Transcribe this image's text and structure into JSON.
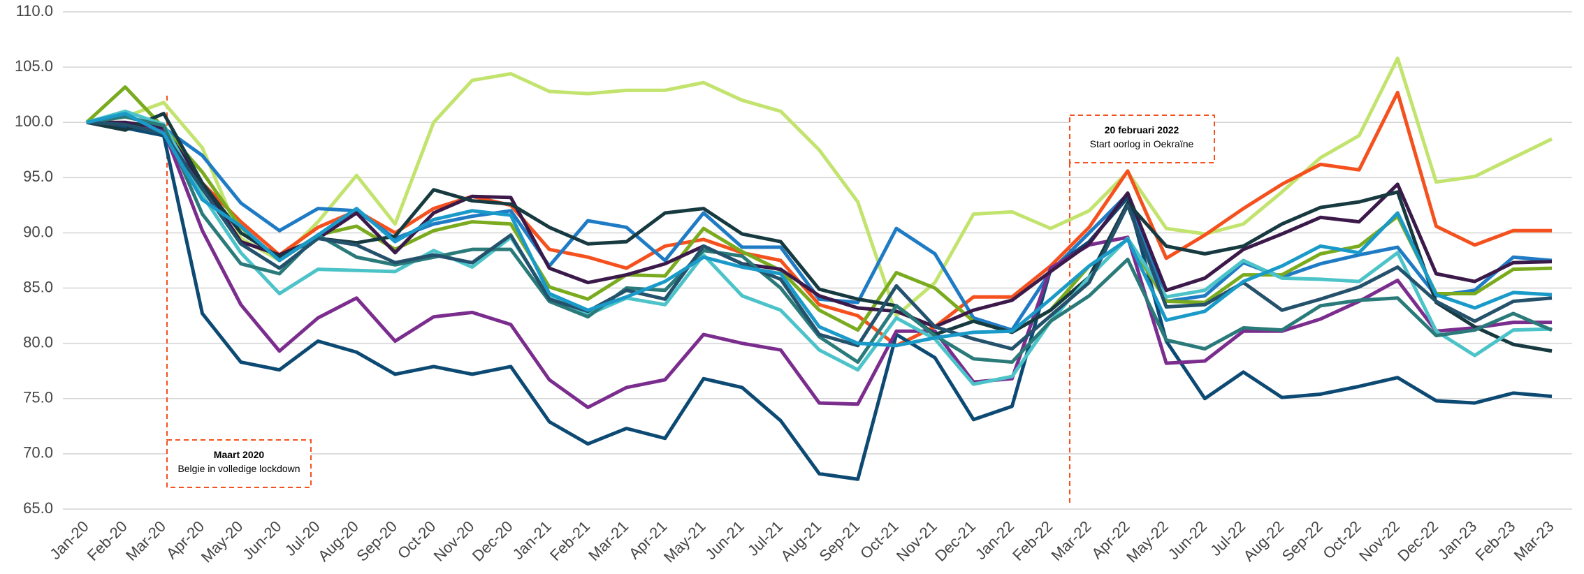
{
  "chart_data": {
    "type": "line",
    "categories": [
      "Jan-20",
      "Feb-20",
      "Mar-20",
      "Apr-20",
      "May-20",
      "Jun-20",
      "Jul-20",
      "Aug-20",
      "Sep-20",
      "Oct-20",
      "Nov-20",
      "Dec-20",
      "Jan-21",
      "Feb-21",
      "Mar-21",
      "Apr-21",
      "May-21",
      "Jun-21",
      "Jul-21",
      "Aug-21",
      "Sep-21",
      "Oct-21",
      "Nov-21",
      "Dec-21",
      "Jan-22",
      "Feb-22",
      "Mar-22",
      "Apr-22",
      "May-22",
      "Jun-22",
      "Jul-22",
      "Aug-22",
      "Sep-22",
      "Oct-22",
      "Nov-22",
      "Dec-22",
      "Jan-23",
      "Feb-23",
      "Mar-23"
    ],
    "ylim": [
      65,
      110
    ],
    "yticks": [
      {
        "value": 65,
        "label": "65.0"
      },
      {
        "value": 70,
        "label": "70.0"
      },
      {
        "value": 75,
        "label": "75.0"
      },
      {
        "value": 80,
        "label": "80.0"
      },
      {
        "value": 85,
        "label": "85.0"
      },
      {
        "value": 90,
        "label": "90.0"
      },
      {
        "value": 95,
        "label": "95.0"
      },
      {
        "value": 100,
        "label": "100.0"
      },
      {
        "value": 105,
        "label": "105.0"
      },
      {
        "value": 110,
        "label": "110.0"
      }
    ],
    "grid": true,
    "annotations": [
      {
        "title": "Maart 2020",
        "text": "Belgie in volledige lockdown"
      },
      {
        "title": "20 februari 2022",
        "text": "Start oorlog in Oekraïne"
      }
    ],
    "series": [
      {
        "color": "#c2e46e",
        "values": [
          100,
          100.5,
          101.8,
          97.7,
          89.5,
          87.5,
          91,
          95.2,
          90.8,
          100,
          103.8,
          104.4,
          102.8,
          102.6,
          102.9,
          102.9,
          103.6,
          102,
          101,
          97.5,
          92.8,
          82.5,
          85.5,
          91.7,
          91.9,
          90.4,
          92,
          95.5,
          90.4,
          89.9,
          90.8,
          93.7,
          96.8,
          98.8,
          105.8,
          94.6,
          95.1,
          96.8,
          98.5
        ]
      },
      {
        "color": "#f4511e",
        "values": [
          100,
          99.8,
          99.2,
          94.5,
          91,
          88,
          90.5,
          92,
          90,
          92.2,
          93.3,
          92.5,
          88.5,
          87.8,
          86.8,
          88.8,
          89.4,
          88.2,
          87.5,
          83.5,
          82.5,
          79.8,
          81.5,
          84.2,
          84.2,
          87,
          90.5,
          95.6,
          87.7,
          89.8,
          92.2,
          94.4,
          96.2,
          95.7,
          102.7,
          90.6,
          88.9,
          90.2,
          90.2
        ]
      },
      {
        "color": "#1f7bc4",
        "values": [
          100,
          99.5,
          99.5,
          97,
          92.7,
          90.2,
          92.2,
          92,
          89.5,
          90.8,
          91.5,
          92,
          87,
          91.1,
          90.5,
          87.5,
          91.8,
          88.7,
          88.7,
          84,
          83.7,
          90.4,
          88.1,
          82.3,
          81.2,
          86.5,
          90,
          93.5,
          83.8,
          84.3,
          87.3,
          86,
          87.2,
          88,
          88.7,
          84.3,
          84.8,
          87.8,
          87.5
        ]
      },
      {
        "color": "#0d4a73",
        "values": [
          100,
          99.5,
          98.8,
          82.7,
          78.3,
          77.6,
          80.2,
          79.2,
          77.2,
          77.9,
          77.2,
          77.9,
          72.9,
          70.9,
          72.3,
          71.4,
          76.8,
          76,
          73,
          68.2,
          67.7,
          80.8,
          78.7,
          73.1,
          74.3,
          86.7,
          89.2,
          93.2,
          80.2,
          75,
          77.4,
          75.1,
          75.4,
          76.1,
          76.9,
          74.8,
          74.6,
          75.5,
          75.2
        ]
      },
      {
        "color": "#7b2d8e",
        "values": [
          100,
          99.8,
          99.3,
          90.2,
          83.5,
          79.3,
          82.3,
          84.1,
          80.2,
          82.4,
          82.8,
          81.7,
          76.7,
          74.2,
          76,
          76.7,
          80.8,
          80,
          79.4,
          74.6,
          74.5,
          81.1,
          81.1,
          76.5,
          76.8,
          86.8,
          88.9,
          89.6,
          78.2,
          78.4,
          81.1,
          81.1,
          82.2,
          83.8,
          85.7,
          81.1,
          81.4,
          81.9,
          81.9
        ]
      },
      {
        "color": "#7aab1e",
        "values": [
          100,
          103.2,
          99.5,
          95.5,
          90.5,
          87.5,
          89.8,
          90.6,
          88.5,
          90.2,
          91,
          90.8,
          85.1,
          84,
          86.2,
          86.1,
          90.4,
          88.3,
          86.6,
          83,
          81.2,
          86.4,
          85,
          82,
          81,
          83,
          87,
          89.4,
          83.8,
          83.7,
          86.2,
          86.2,
          88.1,
          88.8,
          91.5,
          84.5,
          84.5,
          86.7,
          86.8
        ]
      },
      {
        "color": "#3b1a4a",
        "values": [
          100,
          100,
          99.5,
          94.5,
          89.2,
          88,
          89.5,
          91.8,
          88.2,
          91.8,
          93.3,
          93.2,
          86.8,
          85.5,
          86.2,
          87.2,
          88.8,
          87.2,
          86.7,
          84.3,
          83.2,
          82.9,
          81.5,
          83,
          83.9,
          86.5,
          89,
          93.6,
          84.8,
          85.9,
          88.5,
          89.9,
          91.4,
          91,
          94.4,
          86.3,
          85.6,
          87.3,
          87.4
        ]
      },
      {
        "color": "#173a40",
        "values": [
          100,
          99.3,
          100.8,
          94.5,
          90,
          87.8,
          89.5,
          89.1,
          89.7,
          93.9,
          92.9,
          92.6,
          90.5,
          89,
          89.2,
          91.8,
          92.2,
          89.9,
          89.2,
          84.9,
          84,
          83.4,
          80.8,
          82,
          81,
          83,
          86,
          92.7,
          88.8,
          88.1,
          88.8,
          90.8,
          92.3,
          92.8,
          93.7,
          83.7,
          81.5,
          79.9,
          79.3
        ]
      },
      {
        "color": "#4bc3c8",
        "values": [
          100,
          101,
          99.8,
          93.4,
          88.2,
          84.5,
          86.7,
          86.6,
          86.5,
          88.4,
          86.9,
          89.6,
          84.2,
          82.6,
          84.1,
          83.5,
          88,
          84.3,
          83,
          79.4,
          77.6,
          82.3,
          80.4,
          76.3,
          77,
          82,
          86,
          89.5,
          84.2,
          84.8,
          87.5,
          85.9,
          85.8,
          85.6,
          88.2,
          81.1,
          78.9,
          81.2,
          81.3
        ]
      },
      {
        "color": "#2a7a7a",
        "values": [
          100,
          100.5,
          99.7,
          91.7,
          87.2,
          86.3,
          89.8,
          87.8,
          87.1,
          87.8,
          88.5,
          88.5,
          83.8,
          82.4,
          85,
          84.8,
          88.4,
          87.9,
          85,
          80.6,
          78.3,
          83.4,
          80.7,
          78.6,
          78.3,
          82,
          84.3,
          87.6,
          80.3,
          79.5,
          81.4,
          81.2,
          83.4,
          83.9,
          84.1,
          80.7,
          81.2,
          82.7,
          81.2
        ]
      },
      {
        "color": "#24516b",
        "values": [
          100,
          99.8,
          99,
          94,
          89,
          86.8,
          89.5,
          88.9,
          87.3,
          88,
          87.3,
          89.8,
          84,
          82.9,
          84.8,
          84,
          88.8,
          87.2,
          85.8,
          80.8,
          79.8,
          85.2,
          81.5,
          80.4,
          79.5,
          82.5,
          85.5,
          92.5,
          83.3,
          83.5,
          85.5,
          83,
          84,
          85.1,
          86.9,
          83.8,
          82,
          83.8,
          84.1
        ]
      },
      {
        "color": "#1a9ac9",
        "values": [
          100,
          100.8,
          99,
          93,
          90.6,
          87.5,
          89.8,
          92.2,
          89.2,
          91.2,
          92,
          91.6,
          84.5,
          83,
          84.2,
          85.6,
          87.8,
          86.9,
          86.3,
          81.5,
          80,
          79.8,
          80.5,
          81,
          81.1,
          84,
          87,
          89.4,
          82.1,
          82.9,
          85.6,
          87,
          88.8,
          88.2,
          91.8,
          84.4,
          83.2,
          84.6,
          84.4
        ]
      }
    ]
  }
}
